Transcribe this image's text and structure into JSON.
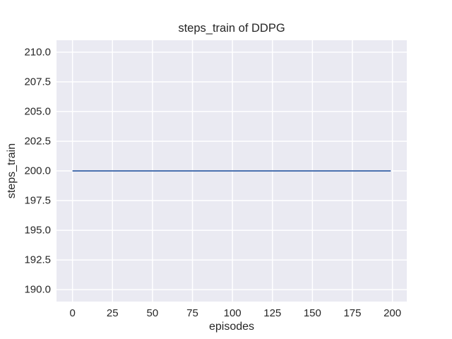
{
  "chart_data": {
    "type": "line",
    "title": "steps_train of DDPG",
    "xlabel": "episodes",
    "ylabel": "steps_train",
    "x_ticks": [
      0,
      25,
      50,
      75,
      100,
      125,
      150,
      175,
      200
    ],
    "x_tick_labels": [
      "0",
      "25",
      "50",
      "75",
      "100",
      "125",
      "150",
      "175",
      "200"
    ],
    "y_ticks": [
      190,
      192.5,
      195,
      197.5,
      200,
      202.5,
      205,
      207.5,
      210
    ],
    "y_tick_labels": [
      "190.0",
      "192.5",
      "195.0",
      "197.5",
      "200.0",
      "202.5",
      "205.0",
      "207.5",
      "210.0"
    ],
    "xlim": [
      -10,
      209
    ],
    "ylim": [
      189,
      211
    ],
    "grid": true,
    "legend": "none",
    "styles": {
      "plot_bg": "#eaeaf2",
      "grid_color": "#ffffff",
      "text_color": "#262626",
      "line_color": "#4c72b0",
      "figure_bg": "#ffffff"
    },
    "series": [
      {
        "name": "steps_train",
        "color": "#4c72b0",
        "x": [
          0,
          199
        ],
        "y": [
          200,
          200
        ]
      }
    ]
  }
}
